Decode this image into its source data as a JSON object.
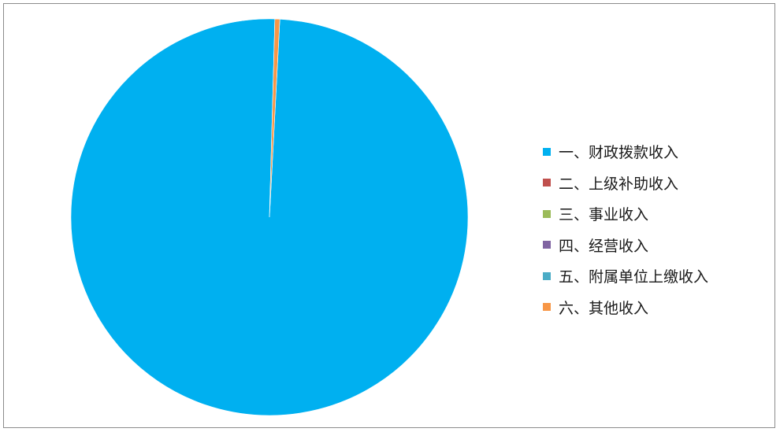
{
  "chart_data": {
    "type": "pie",
    "slices": [
      {
        "label": "一、财政拨款收入",
        "value": 99.6,
        "color": "#00B0F0"
      },
      {
        "label": "二、上级补助收入",
        "value": 0,
        "color": "#C0504D"
      },
      {
        "label": "三、事业收入",
        "value": 0,
        "color": "#9BBB59"
      },
      {
        "label": "四、经营收入",
        "value": 0,
        "color": "#8064A2"
      },
      {
        "label": "五、附属单位上缴收入",
        "value": 0,
        "color": "#4BACC6"
      },
      {
        "label": "六、其他收入",
        "value": 0.4,
        "color": "#F79646"
      }
    ],
    "legend_position": "right"
  }
}
